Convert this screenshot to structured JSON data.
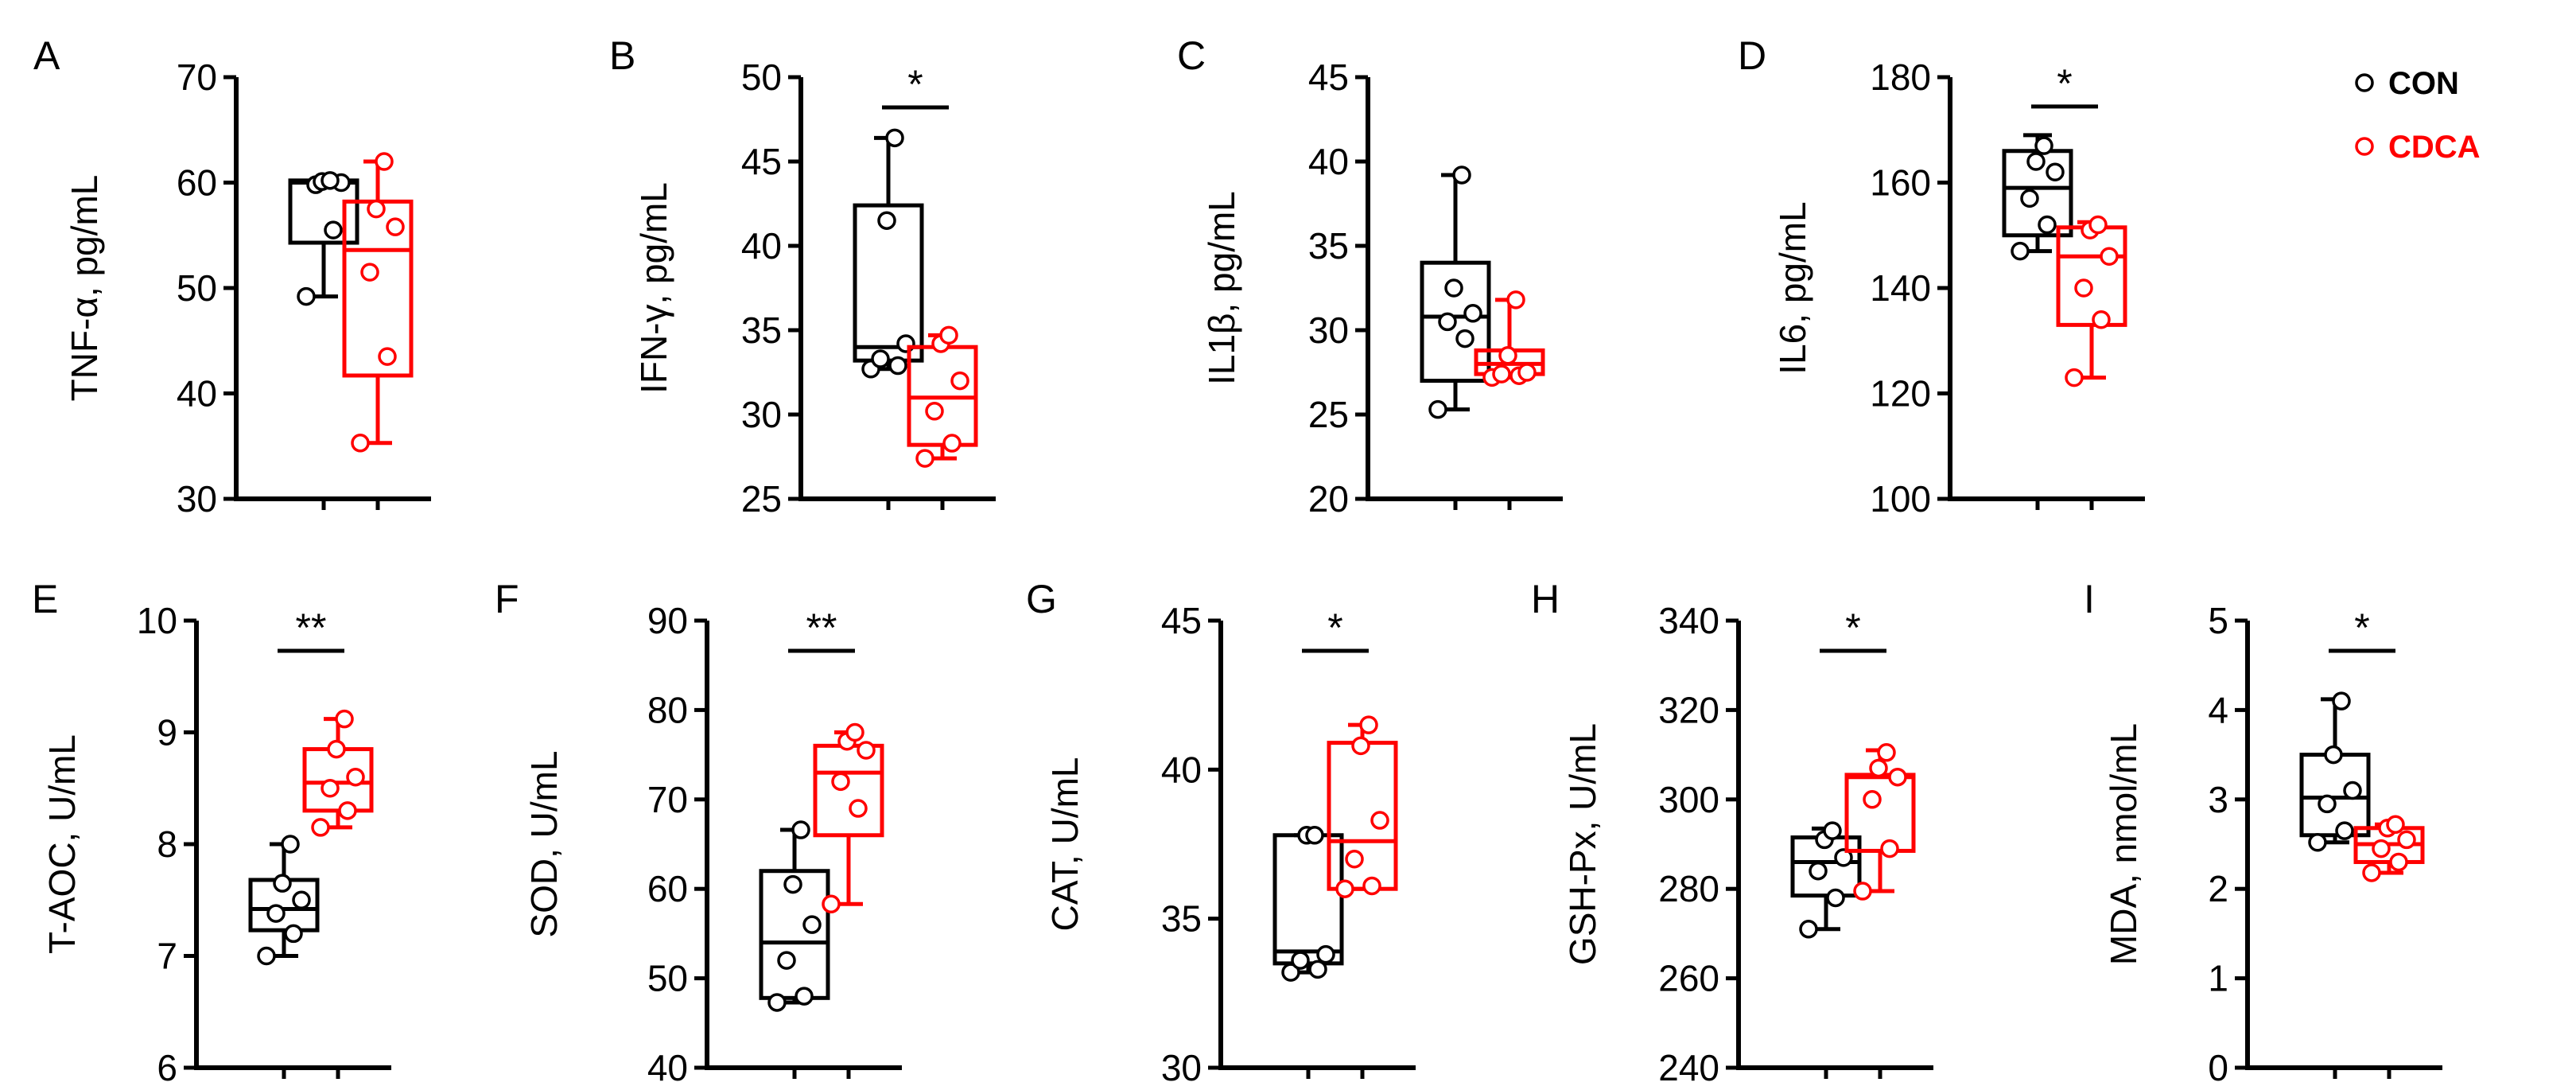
{
  "colors": {
    "con": "#000000",
    "cdca": "#ff0000"
  },
  "legend": [
    {
      "label": "CON",
      "color": "#000000"
    },
    {
      "label": "CDCA",
      "color": "#ff0000"
    }
  ],
  "chart_data": [
    {
      "panel": "A",
      "type": "box",
      "ylabel": "TNF-α, pg/mL",
      "ylim": [
        30,
        70
      ],
      "yticks": [
        "30",
        "40",
        "50",
        "60",
        "70"
      ],
      "significance": "",
      "series": [
        {
          "name": "CON",
          "min": 49.2,
          "q1": 54.3,
          "median": 60.0,
          "q3": 60.2,
          "max": 60.2,
          "points": [
            49.2,
            55.5,
            59.8,
            60.0,
            60.1,
            60.2
          ]
        },
        {
          "name": "CDCA",
          "min": 35.3,
          "q1": 41.7,
          "median": 53.6,
          "q3": 58.2,
          "max": 62.0,
          "points": [
            35.3,
            43.5,
            51.5,
            55.8,
            57.5,
            62.0
          ]
        }
      ]
    },
    {
      "panel": "B",
      "type": "box",
      "ylabel": "IFN-γ, pg/mL",
      "ylim": [
        25,
        50
      ],
      "yticks": [
        "25",
        "30",
        "35",
        "40",
        "45",
        "50"
      ],
      "significance": "*",
      "series": [
        {
          "name": "CON",
          "min": 32.7,
          "q1": 33.2,
          "median": 34.0,
          "q3": 42.4,
          "max": 46.4,
          "points": [
            32.7,
            32.9,
            33.3,
            34.2,
            41.5,
            46.4
          ]
        },
        {
          "name": "CDCA",
          "min": 27.4,
          "q1": 28.2,
          "median": 31.0,
          "q3": 34.0,
          "max": 34.7,
          "points": [
            27.4,
            28.3,
            30.2,
            32.0,
            34.2,
            34.7
          ]
        }
      ]
    },
    {
      "panel": "C",
      "type": "box",
      "ylabel": "IL1β, pg/mL",
      "ylim": [
        20,
        45
      ],
      "yticks": [
        "20",
        "25",
        "30",
        "35",
        "40",
        "45"
      ],
      "significance": "",
      "series": [
        {
          "name": "CON",
          "min": 25.3,
          "q1": 27.0,
          "median": 30.8,
          "q3": 34.0,
          "max": 39.2,
          "points": [
            25.3,
            29.5,
            30.5,
            31.0,
            32.5,
            39.2
          ]
        },
        {
          "name": "CDCA",
          "min": 27.2,
          "q1": 27.4,
          "median": 28.0,
          "q3": 28.8,
          "max": 31.8,
          "points": [
            27.2,
            27.3,
            27.4,
            27.5,
            28.5,
            31.8
          ]
        }
      ]
    },
    {
      "panel": "D",
      "type": "box",
      "ylabel": "IL6, pg/mL",
      "ylim": [
        100,
        180
      ],
      "yticks": [
        "100",
        "120",
        "140",
        "160",
        "180"
      ],
      "significance": "*",
      "series": [
        {
          "name": "CON",
          "min": 147,
          "q1": 150,
          "median": 159,
          "q3": 166,
          "max": 169,
          "points": [
            147,
            152,
            157,
            162,
            164,
            167
          ]
        },
        {
          "name": "CDCA",
          "min": 123,
          "q1": 133,
          "median": 146,
          "q3": 151.5,
          "max": 152.5,
          "points": [
            123,
            134,
            140,
            146,
            151,
            152
          ]
        }
      ]
    },
    {
      "panel": "E",
      "type": "box",
      "ylabel": "T-AOC, U/mL",
      "ylim": [
        6,
        10
      ],
      "yticks": [
        "6",
        "7",
        "8",
        "9",
        "10"
      ],
      "significance": "**",
      "series": [
        {
          "name": "CON",
          "min": 7.0,
          "q1": 7.23,
          "median": 7.42,
          "q3": 7.68,
          "max": 8.0,
          "points": [
            7.0,
            7.2,
            7.38,
            7.5,
            7.65,
            8.0
          ]
        },
        {
          "name": "CDCA",
          "min": 8.15,
          "q1": 8.3,
          "median": 8.55,
          "q3": 8.85,
          "max": 9.12,
          "points": [
            8.15,
            8.3,
            8.5,
            8.6,
            8.85,
            9.12
          ]
        }
      ]
    },
    {
      "panel": "F",
      "type": "box",
      "ylabel": "SOD, U/mL",
      "ylim": [
        40,
        90
      ],
      "yticks": [
        "40",
        "50",
        "60",
        "70",
        "80",
        "90"
      ],
      "significance": "**",
      "series": [
        {
          "name": "CON",
          "min": 47.3,
          "q1": 47.8,
          "median": 54.0,
          "q3": 62.0,
          "max": 66.6,
          "points": [
            47.3,
            48.0,
            52.0,
            56.0,
            60.5,
            66.6
          ]
        },
        {
          "name": "CDCA",
          "min": 58.3,
          "q1": 66.0,
          "median": 73.0,
          "q3": 76.0,
          "max": 77.5,
          "points": [
            58.3,
            69.0,
            72.0,
            75.5,
            76.5,
            77.5
          ]
        }
      ]
    },
    {
      "panel": "G",
      "type": "box",
      "ylabel": "CAT, U/mL",
      "ylim": [
        30,
        45
      ],
      "yticks": [
        "30",
        "35",
        "40",
        "45"
      ],
      "significance": "*",
      "series": [
        {
          "name": "CON",
          "min": 33.2,
          "q1": 33.5,
          "median": 33.9,
          "q3": 37.8,
          "max": 37.8,
          "points": [
            33.2,
            33.3,
            33.6,
            33.8,
            37.8,
            37.8
          ]
        },
        {
          "name": "CDCA",
          "min": 36.0,
          "q1": 36.0,
          "median": 37.6,
          "q3": 40.9,
          "max": 41.5,
          "points": [
            36.0,
            36.1,
            37.0,
            38.3,
            40.8,
            41.5
          ]
        }
      ]
    },
    {
      "panel": "H",
      "type": "box",
      "ylabel": "GSH-Px, U/mL",
      "ylim": [
        240,
        340
      ],
      "yticks": [
        "240",
        "260",
        "280",
        "300",
        "320",
        "340"
      ],
      "significance": "*",
      "series": [
        {
          "name": "CON",
          "min": 271,
          "q1": 278.5,
          "median": 286,
          "q3": 291.5,
          "max": 293.5,
          "points": [
            271,
            278,
            284,
            287,
            291,
            293
          ]
        },
        {
          "name": "CDCA",
          "min": 279.5,
          "q1": 288.5,
          "median": 305,
          "q3": 305.5,
          "max": 311,
          "points": [
            279.5,
            289,
            300,
            305,
            307,
            310.5
          ]
        }
      ]
    },
    {
      "panel": "I",
      "type": "box",
      "ylabel": "MDA, nmol/mL",
      "ylim": [
        0,
        5
      ],
      "yticks": [
        "0",
        "1",
        "2",
        "3",
        "4",
        "5"
      ],
      "significance": "*",
      "series": [
        {
          "name": "CON",
          "min": 2.52,
          "q1": 2.6,
          "median": 3.02,
          "q3": 3.5,
          "max": 4.12,
          "points": [
            2.52,
            2.65,
            2.95,
            3.1,
            3.5,
            4.1
          ]
        },
        {
          "name": "CDCA",
          "min": 2.18,
          "q1": 2.3,
          "median": 2.5,
          "q3": 2.68,
          "max": 2.72,
          "points": [
            2.18,
            2.3,
            2.45,
            2.55,
            2.68,
            2.72
          ]
        }
      ]
    }
  ]
}
